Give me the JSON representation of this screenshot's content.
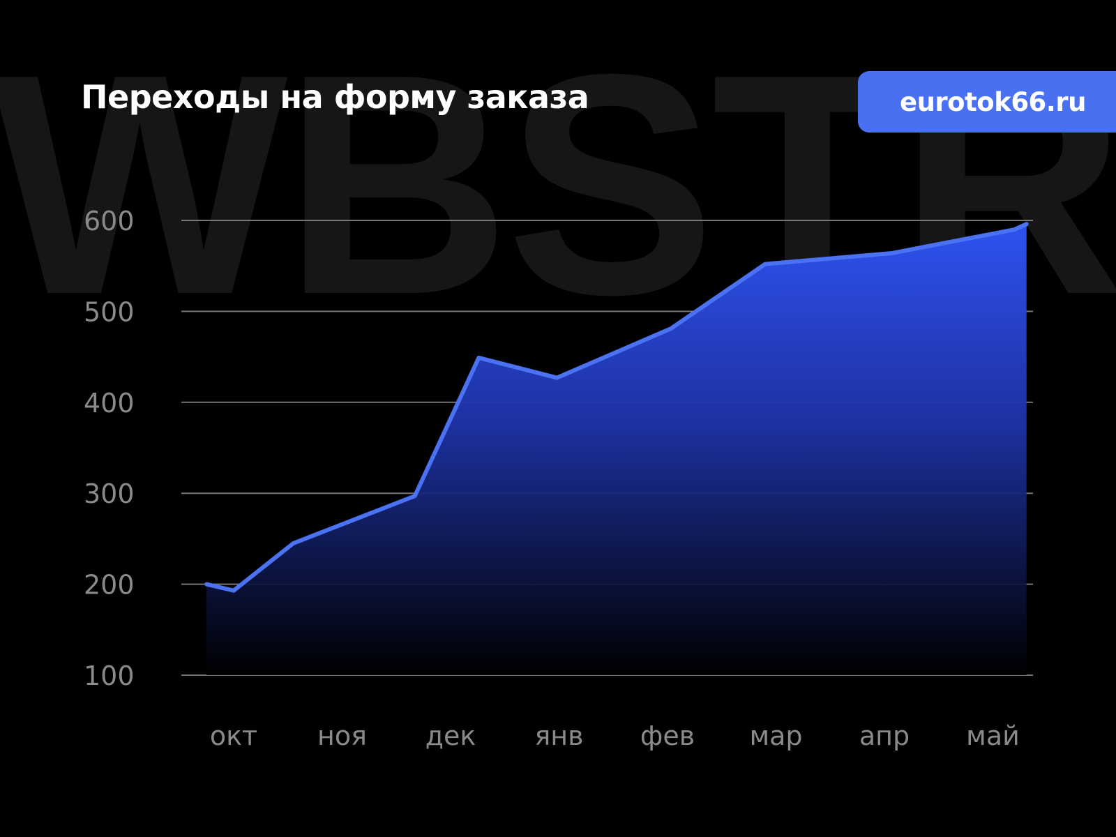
{
  "watermark": "WBSTR",
  "header": {
    "title": "Переходы на форму заказа",
    "site": "eurotok66.ru"
  },
  "colors": {
    "background": "#000000",
    "accent": "#4870f0",
    "line": "#4a72f2",
    "grid": "#8a8a8a",
    "tick": "#8a8a8a"
  },
  "chart_data": {
    "type": "area",
    "title": "Переходы на форму заказа",
    "xlabel": "",
    "ylabel": "",
    "categories": [
      "окт",
      "ноя",
      "дек",
      "янв",
      "фев",
      "мар",
      "апр",
      "май"
    ],
    "yticks": [
      100,
      200,
      300,
      400,
      500,
      600
    ],
    "ylim": [
      100,
      600
    ],
    "grid": true,
    "legend": "none",
    "series": [
      {
        "x": [
          -0.25,
          0.0,
          0.55,
          1.67,
          2.26,
          2.98,
          4.03,
          4.9,
          6.07,
          7.2,
          7.31
        ],
        "values": [
          200,
          193,
          245,
          297,
          449,
          427,
          481,
          552,
          564,
          590,
          596
        ]
      }
    ]
  }
}
